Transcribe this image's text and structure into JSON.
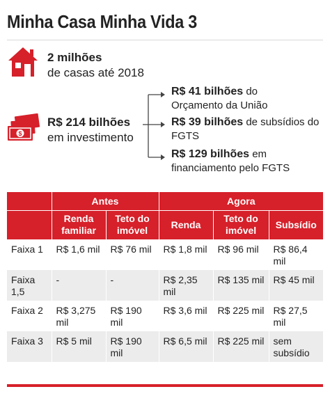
{
  "title": "Minha Casa Minha Vida 3",
  "colors": {
    "accent": "#d6202a",
    "row_alt": "#ececec"
  },
  "icons": {
    "house": "house-icon",
    "money": "money-icon"
  },
  "stat_houses": {
    "bold": "2 milhões",
    "line2": "de casas até 2018"
  },
  "stat_investment": {
    "bold": "R$ 214 bilhões",
    "line2": "em investimento"
  },
  "financing": [
    {
      "bold": "R$ 41 bilhões",
      "rest": " do",
      "line2": "Orçamento da União"
    },
    {
      "bold": "R$ 39 bilhões",
      "rest": " de subsídios do",
      "line2": "FGTS"
    },
    {
      "bold": "R$ 129 bilhões",
      "rest": " em",
      "line2": "financiamento pelo FGTS"
    }
  ],
  "table": {
    "groups": {
      "before": "Antes",
      "now": "Agora"
    },
    "columns": {
      "renda_familiar": "Renda familiar",
      "teto_imovel_before": "Teto do imóvel",
      "renda": "Renda",
      "teto_imovel_now": "Teto do imóvel",
      "subsidio": "Subsídio"
    },
    "rows": [
      {
        "faixa": "Faixa 1",
        "renda_familiar": "R$ 1,6 mil",
        "teto_before": "R$ 76 mil",
        "renda": "R$ 1,8 mil",
        "teto_now": "R$ 96 mil",
        "subsidio": "R$ 86,4 mil"
      },
      {
        "faixa": "Faixa 1,5",
        "renda_familiar": "-",
        "teto_before": "-",
        "renda": "R$ 2,35 mil",
        "teto_now": "R$ 135 mil",
        "subsidio": "R$ 45 mil"
      },
      {
        "faixa": "Faixa 2",
        "renda_familiar": "R$ 3,275 mil",
        "teto_before": "R$ 190 mil",
        "renda": "R$ 3,6 mil",
        "teto_now": "R$ 225 mil",
        "subsidio": "R$ 27,5 mil"
      },
      {
        "faixa": "Faixa 3",
        "renda_familiar": "R$ 5 mil",
        "teto_before": "R$ 190 mil",
        "renda": "R$ 6,5 mil",
        "teto_now": "R$ 225 mil",
        "subsidio": "sem subsídio"
      }
    ]
  }
}
